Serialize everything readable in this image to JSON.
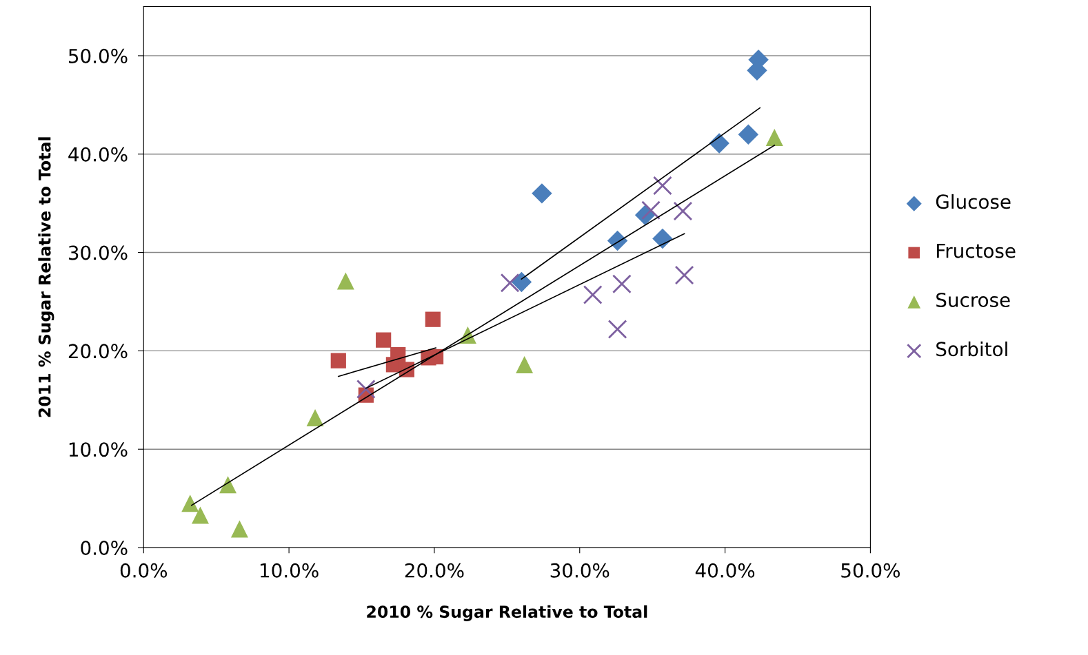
{
  "chart_data": {
    "type": "scatter",
    "xlabel": "2010 % Sugar Relative to Total",
    "ylabel": "2011 % Sugar Relative to Total",
    "xlim": [
      0,
      50
    ],
    "ylim": [
      0,
      55
    ],
    "xticks": [
      {
        "value": 0,
        "label": "0.0%"
      },
      {
        "value": 10,
        "label": "10.0%"
      },
      {
        "value": 20,
        "label": "20.0%"
      },
      {
        "value": 30,
        "label": "30.0%"
      },
      {
        "value": 40,
        "label": "40.0%"
      },
      {
        "value": 50,
        "label": "50.0%"
      }
    ],
    "yticks": [
      {
        "value": 0,
        "label": "0.0%"
      },
      {
        "value": 10,
        "label": "10.0%"
      },
      {
        "value": 20,
        "label": "20.0%"
      },
      {
        "value": 30,
        "label": "30.0%"
      },
      {
        "value": 40,
        "label": "40.0%"
      },
      {
        "value": 50,
        "label": "50.0%"
      }
    ],
    "grid": "y",
    "legend": "right",
    "series": [
      {
        "name": "Glucose",
        "color": "#4a7ebb",
        "marker": "diamond",
        "x": [
          42.3,
          42.2,
          41.6,
          39.6,
          27.4,
          34.5,
          32.6,
          35.7,
          26.0
        ],
        "values": [
          49.6,
          48.5,
          42.0,
          41.1,
          36.0,
          33.8,
          31.2,
          31.4,
          27.0
        ]
      },
      {
        "name": "Fructose",
        "color": "#be4b48",
        "marker": "square",
        "x": [
          19.9,
          16.5,
          17.5,
          13.4,
          20.1,
          19.6,
          17.2,
          18.1,
          15.3
        ],
        "values": [
          23.2,
          21.1,
          19.6,
          19.0,
          19.4,
          19.3,
          18.6,
          18.1,
          15.5
        ]
      },
      {
        "name": "Sucrose",
        "color": "#98b954",
        "marker": "triangle",
        "x": [
          43.4,
          13.9,
          22.3,
          26.2,
          11.8,
          5.8,
          3.2,
          3.9,
          6.6
        ],
        "values": [
          41.7,
          27.1,
          21.6,
          18.6,
          13.2,
          6.4,
          4.5,
          3.3,
          1.9
        ]
      },
      {
        "name": "Sorbitol",
        "color": "#7d60a0",
        "marker": "cross",
        "x": [
          35.7,
          34.9,
          37.1,
          25.2,
          30.9,
          32.9,
          37.2,
          32.6,
          15.3
        ],
        "values": [
          36.8,
          34.3,
          34.2,
          26.9,
          25.7,
          26.8,
          27.7,
          22.2,
          16.1
        ]
      },
      {
        "type": "line",
        "color": "#000000",
        "marker": "none",
        "line_style": "solid",
        "x": [
          26.0,
          42.4
        ],
        "values": [
          27.3,
          44.7
        ]
      },
      {
        "type": "line",
        "color": "#000000",
        "marker": "none",
        "line_style": "solid",
        "x": [
          13.4,
          20.1
        ],
        "values": [
          17.4,
          20.3
        ]
      },
      {
        "type": "line",
        "color": "#000000",
        "marker": "none",
        "line_style": "solid",
        "x": [
          3.3,
          43.4
        ],
        "values": [
          4.3,
          40.9
        ]
      },
      {
        "type": "line",
        "color": "#000000",
        "line_style": "solid",
        "x": [
          15.3,
          37.2
        ],
        "values": [
          16.2,
          31.9
        ]
      }
    ]
  }
}
